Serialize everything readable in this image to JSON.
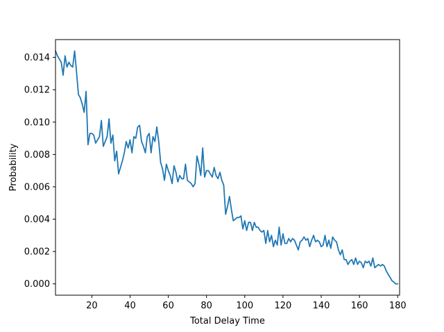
{
  "chart_data": {
    "type": "line",
    "title": "",
    "xlabel": "Total Delay Time",
    "ylabel": "Probability",
    "xlim": [
      1,
      181
    ],
    "ylim": [
      -0.0007,
      0.0151
    ],
    "grid": false,
    "xticks": [
      20,
      40,
      60,
      80,
      100,
      120,
      140,
      160,
      180
    ],
    "yticks": [
      0.0,
      0.002,
      0.004,
      0.006,
      0.008,
      0.01,
      0.012,
      0.014
    ],
    "xtick_labels": [
      "20",
      "40",
      "60",
      "80",
      "100",
      "120",
      "140",
      "160",
      "180"
    ],
    "ytick_labels": [
      "0.000",
      "0.002",
      "0.004",
      "0.006",
      "0.008",
      "0.010",
      "0.012",
      "0.014"
    ],
    "series": [
      {
        "color": "#1f77b4",
        "x": [
          1,
          2,
          3,
          4,
          5,
          6,
          7,
          8,
          9,
          10,
          11,
          12,
          13,
          14,
          15,
          16,
          17,
          18,
          19,
          20,
          21,
          22,
          23,
          24,
          25,
          26,
          27,
          28,
          29,
          30,
          31,
          32,
          33,
          34,
          35,
          36,
          37,
          38,
          39,
          40,
          41,
          42,
          43,
          44,
          45,
          46,
          47,
          48,
          49,
          50,
          51,
          52,
          53,
          54,
          55,
          56,
          57,
          58,
          59,
          60,
          61,
          62,
          63,
          64,
          65,
          66,
          67,
          68,
          69,
          70,
          71,
          72,
          73,
          74,
          75,
          76,
          77,
          78,
          79,
          80,
          81,
          82,
          83,
          84,
          85,
          86,
          87,
          88,
          89,
          90,
          91,
          92,
          93,
          94,
          95,
          96,
          97,
          98,
          99,
          100,
          101,
          102,
          103,
          104,
          105,
          106,
          107,
          108,
          109,
          110,
          111,
          112,
          113,
          114,
          115,
          116,
          117,
          118,
          119,
          120,
          121,
          122,
          123,
          124,
          125,
          126,
          127,
          128,
          129,
          130,
          131,
          132,
          133,
          134,
          135,
          136,
          137,
          138,
          139,
          140,
          141,
          142,
          143,
          144,
          145,
          146,
          147,
          148,
          149,
          150,
          151,
          152,
          153,
          154,
          155,
          156,
          157,
          158,
          159,
          160,
          161,
          162,
          163,
          164,
          165,
          166,
          167,
          168,
          169,
          170,
          171,
          172,
          173,
          174,
          175,
          176,
          177,
          178,
          179,
          180
        ],
        "y": [
          0.0144,
          0.0141,
          0.0139,
          0.0137,
          0.0129,
          0.0141,
          0.0134,
          0.0137,
          0.0135,
          0.0134,
          0.0144,
          0.0131,
          0.0117,
          0.0115,
          0.0111,
          0.0106,
          0.0119,
          0.0086,
          0.0093,
          0.0093,
          0.0092,
          0.0087,
          0.0089,
          0.0091,
          0.0101,
          0.0085,
          0.0088,
          0.0091,
          0.0102,
          0.0087,
          0.0092,
          0.0076,
          0.0082,
          0.0068,
          0.0072,
          0.0076,
          0.0081,
          0.0088,
          0.0084,
          0.0089,
          0.0081,
          0.0091,
          0.009,
          0.0097,
          0.0098,
          0.0088,
          0.0085,
          0.0081,
          0.0091,
          0.0093,
          0.0081,
          0.0091,
          0.0088,
          0.0097,
          0.0088,
          0.0075,
          0.0071,
          0.0064,
          0.0074,
          0.007,
          0.0067,
          0.0062,
          0.0073,
          0.0069,
          0.0063,
          0.0067,
          0.0065,
          0.0065,
          0.0074,
          0.0064,
          0.0063,
          0.0062,
          0.006,
          0.0062,
          0.0079,
          0.0074,
          0.0067,
          0.0084,
          0.0066,
          0.007,
          0.007,
          0.0068,
          0.0066,
          0.0072,
          0.0067,
          0.0065,
          0.0069,
          0.0064,
          0.0061,
          0.0043,
          0.0048,
          0.0054,
          0.0046,
          0.0039,
          0.004,
          0.0041,
          0.0041,
          0.0042,
          0.0034,
          0.0039,
          0.0033,
          0.0038,
          0.0038,
          0.0033,
          0.0038,
          0.0035,
          0.0035,
          0.0033,
          0.0032,
          0.0033,
          0.0025,
          0.0033,
          0.0026,
          0.003,
          0.0023,
          0.0027,
          0.0024,
          0.0035,
          0.0024,
          0.0031,
          0.0025,
          0.0025,
          0.0028,
          0.0026,
          0.0028,
          0.0027,
          0.0024,
          0.0021,
          0.0026,
          0.0027,
          0.0029,
          0.0027,
          0.0028,
          0.0023,
          0.0027,
          0.003,
          0.0026,
          0.0027,
          0.0026,
          0.0023,
          0.0024,
          0.003,
          0.0023,
          0.0027,
          0.0022,
          0.0029,
          0.0027,
          0.0026,
          0.0021,
          0.0018,
          0.0021,
          0.0015,
          0.0015,
          0.0012,
          0.0014,
          0.0015,
          0.0012,
          0.0016,
          0.0012,
          0.0014,
          0.0013,
          0.001,
          0.0014,
          0.0013,
          0.0014,
          0.0011,
          0.0016,
          0.001,
          0.0011,
          0.0012,
          0.0011,
          0.0012,
          0.0011,
          0.0008,
          0.0006,
          0.0004,
          0.0002,
          0.0001,
          0.0,
          0.0
        ]
      }
    ]
  }
}
